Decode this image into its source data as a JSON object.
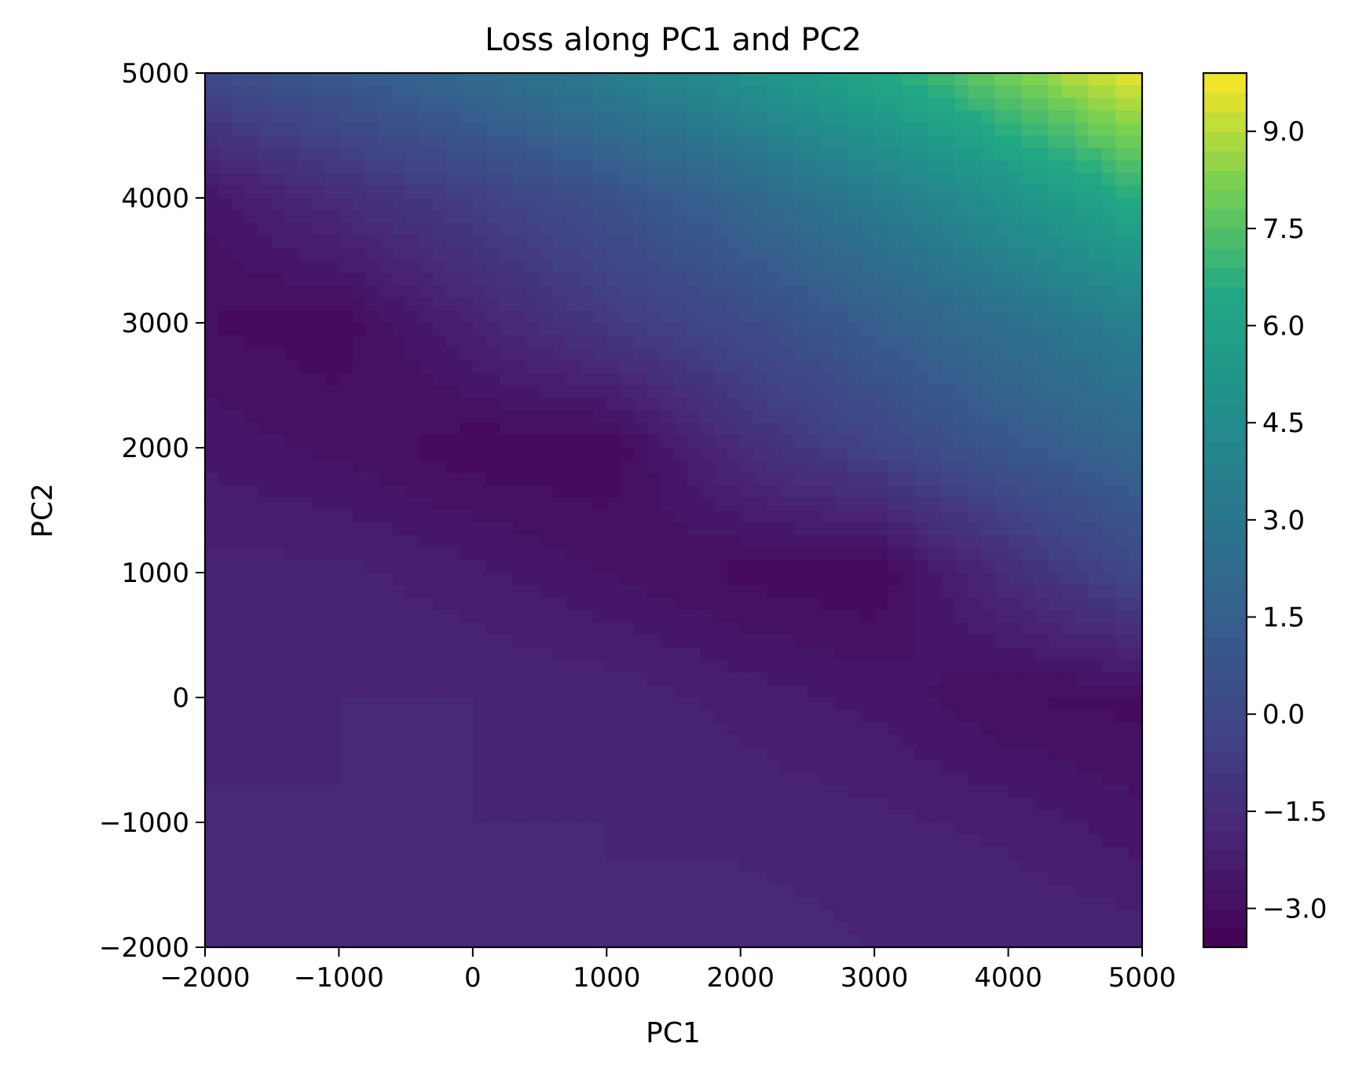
{
  "chart_data": {
    "type": "heatmap",
    "subtype": "filled-contour",
    "title": "Loss along PC1 and PC2",
    "xlabel": "PC1",
    "ylabel": "PC2",
    "xlim": [
      -2000,
      5000
    ],
    "ylim": [
      -2000,
      5000
    ],
    "x_ticks": [
      -2000,
      -1000,
      0,
      1000,
      2000,
      3000,
      4000,
      5000
    ],
    "x_tick_labels": [
      "−2000",
      "−1000",
      "0",
      "1000",
      "2000",
      "3000",
      "4000",
      "5000"
    ],
    "y_ticks": [
      -2000,
      -1000,
      0,
      1000,
      2000,
      3000,
      4000,
      5000
    ],
    "y_tick_labels": [
      "−2000",
      "−1000",
      "0",
      "1000",
      "2000",
      "3000",
      "4000",
      "5000"
    ],
    "colormap": "viridis",
    "colorbar": {
      "range": [
        -3.6,
        9.9
      ],
      "ticks": [
        -3.0,
        -1.5,
        0.0,
        1.5,
        3.0,
        4.5,
        6.0,
        7.5,
        9.0
      ],
      "tick_labels": [
        "−3.0",
        "−1.5",
        "0.0",
        "1.5",
        "3.0",
        "4.5",
        "6.0",
        "7.5",
        "9.0"
      ]
    },
    "x": [
      -2000,
      -1000,
      0,
      1000,
      2000,
      3000,
      4000,
      5000
    ],
    "y": [
      -2000,
      -1000,
      0,
      1000,
      2000,
      3000,
      4000,
      5000
    ],
    "z": [
      [
        -1.6,
        -1.8,
        -1.8,
        -1.8,
        -1.6,
        -1.8,
        -1.8,
        -1.9
      ],
      [
        -1.7,
        -1.8,
        -1.8,
        -1.8,
        -1.9,
        -2.0,
        -2.2,
        -2.6
      ],
      [
        -2.0,
        -1.8,
        -1.8,
        -1.9,
        -2.2,
        -2.5,
        -3.0,
        -3.1
      ],
      [
        -2.0,
        -2.0,
        -2.3,
        -2.7,
        -3.1,
        -3.3,
        -1.5,
        0.1
      ],
      [
        -2.5,
        -2.8,
        -3.2,
        -3.3,
        -1.5,
        -0.2,
        1.0,
        2.0
      ],
      [
        -3.0,
        -3.2,
        -2.0,
        -0.8,
        0.2,
        1.4,
        2.6,
        3.8
      ],
      [
        -2.6,
        -1.5,
        -0.5,
        0.6,
        1.9,
        3.4,
        5.0,
        6.7
      ],
      [
        0.2,
        1.2,
        2.3,
        3.6,
        4.9,
        6.4,
        8.1,
        9.8
      ]
    ]
  }
}
